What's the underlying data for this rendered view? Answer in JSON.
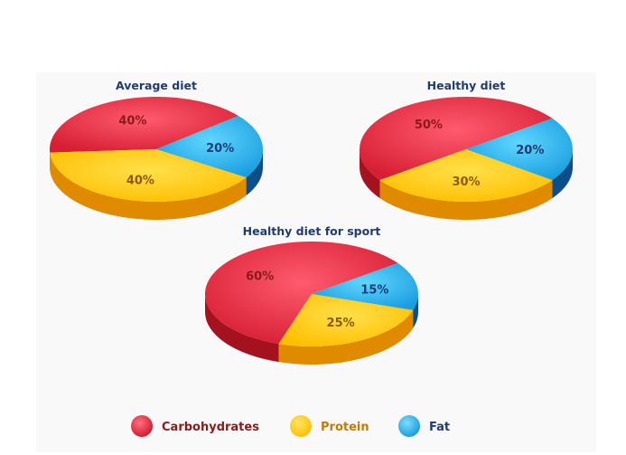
{
  "chart_data": [
    {
      "type": "pie",
      "title": "Average diet",
      "categories": [
        "Carbohydrates",
        "Protein",
        "Fat"
      ],
      "values": [
        40,
        40,
        20
      ],
      "labels": [
        "40%",
        "40%",
        "20%"
      ]
    },
    {
      "type": "pie",
      "title": "Healthy diet",
      "categories": [
        "Carbohydrates",
        "Protein",
        "Fat"
      ],
      "values": [
        50,
        30,
        20
      ],
      "labels": [
        "50%",
        "30%",
        "20%"
      ]
    },
    {
      "type": "pie",
      "title": "Healthy diet for sport",
      "categories": [
        "Carbohydrates",
        "Protein",
        "Fat"
      ],
      "values": [
        60,
        25,
        15
      ],
      "labels": [
        "60%",
        "25%",
        "15%"
      ]
    }
  ],
  "legend": {
    "placement": "bottom",
    "items": [
      {
        "label": "Carbohydrates",
        "color": "#e02b40",
        "text_color": "#8b1a1a"
      },
      {
        "label": "Protein",
        "color": "#ffc800",
        "text_color": "#c77a00"
      },
      {
        "label": "Fat",
        "color": "#1fa8ea",
        "text_color": "#1f3b73"
      }
    ]
  },
  "colors": {
    "carbohydrates": "#e02b40",
    "carbohydrates_side": "#a5121f",
    "protein": "#ffcc00",
    "protein_side": "#e08a00",
    "fat": "#2ab4f0",
    "fat_side": "#0b4f8a",
    "label_carbohydrates": "#8b1a1a",
    "label_protein": "#8b5a00",
    "label_fat": "#1f3b73"
  }
}
